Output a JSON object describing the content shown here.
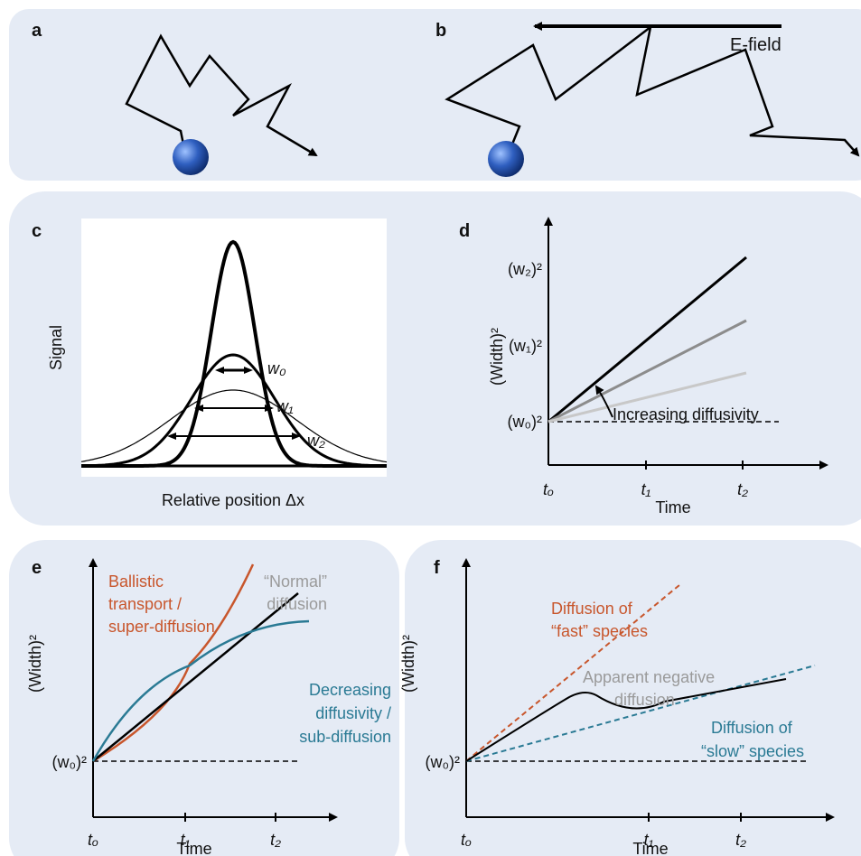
{
  "panels": {
    "a": {
      "label": "a"
    },
    "b": {
      "label": "b",
      "field_label": "E-field"
    },
    "c": {
      "label": "c",
      "y_axis": "Signal",
      "x_axis": "Relative position Δx",
      "widths": [
        "w₀",
        "w₁",
        "w₂"
      ]
    },
    "d": {
      "label": "d",
      "y_axis": "(Width)²",
      "x_axis": "Time",
      "y_ticks": [
        "(w₀)²",
        "(w₁)²",
        "(w₂)²"
      ],
      "x_ticks": [
        "tₒ",
        "t₁",
        "t₂"
      ],
      "annotation": "Increasing diffusivity"
    },
    "e": {
      "label": "e",
      "y_axis": "(Width)²",
      "x_axis": "Time",
      "y_tick": "(w₀)²",
      "x_ticks": [
        "tₒ",
        "t₁",
        "t₂"
      ],
      "ballistic": [
        "Ballistic",
        "transport /",
        "super-diffusion"
      ],
      "normal": [
        "“Normal”",
        "diffusion"
      ],
      "decreasing": [
        "Decreasing",
        "diffusivity /",
        "sub-diffusion"
      ]
    },
    "f": {
      "label": "f",
      "y_axis": "(Width)²",
      "x_axis": "Time",
      "y_tick": "(w₀)²",
      "x_ticks": [
        "tₒ",
        "t₁",
        "t₂"
      ],
      "fast": [
        "Diffusion of",
        "“fast” species"
      ],
      "negative": [
        "Apparent negative",
        "diffusion"
      ],
      "slow": [
        "Diffusion of",
        "“slow” species"
      ]
    }
  }
}
